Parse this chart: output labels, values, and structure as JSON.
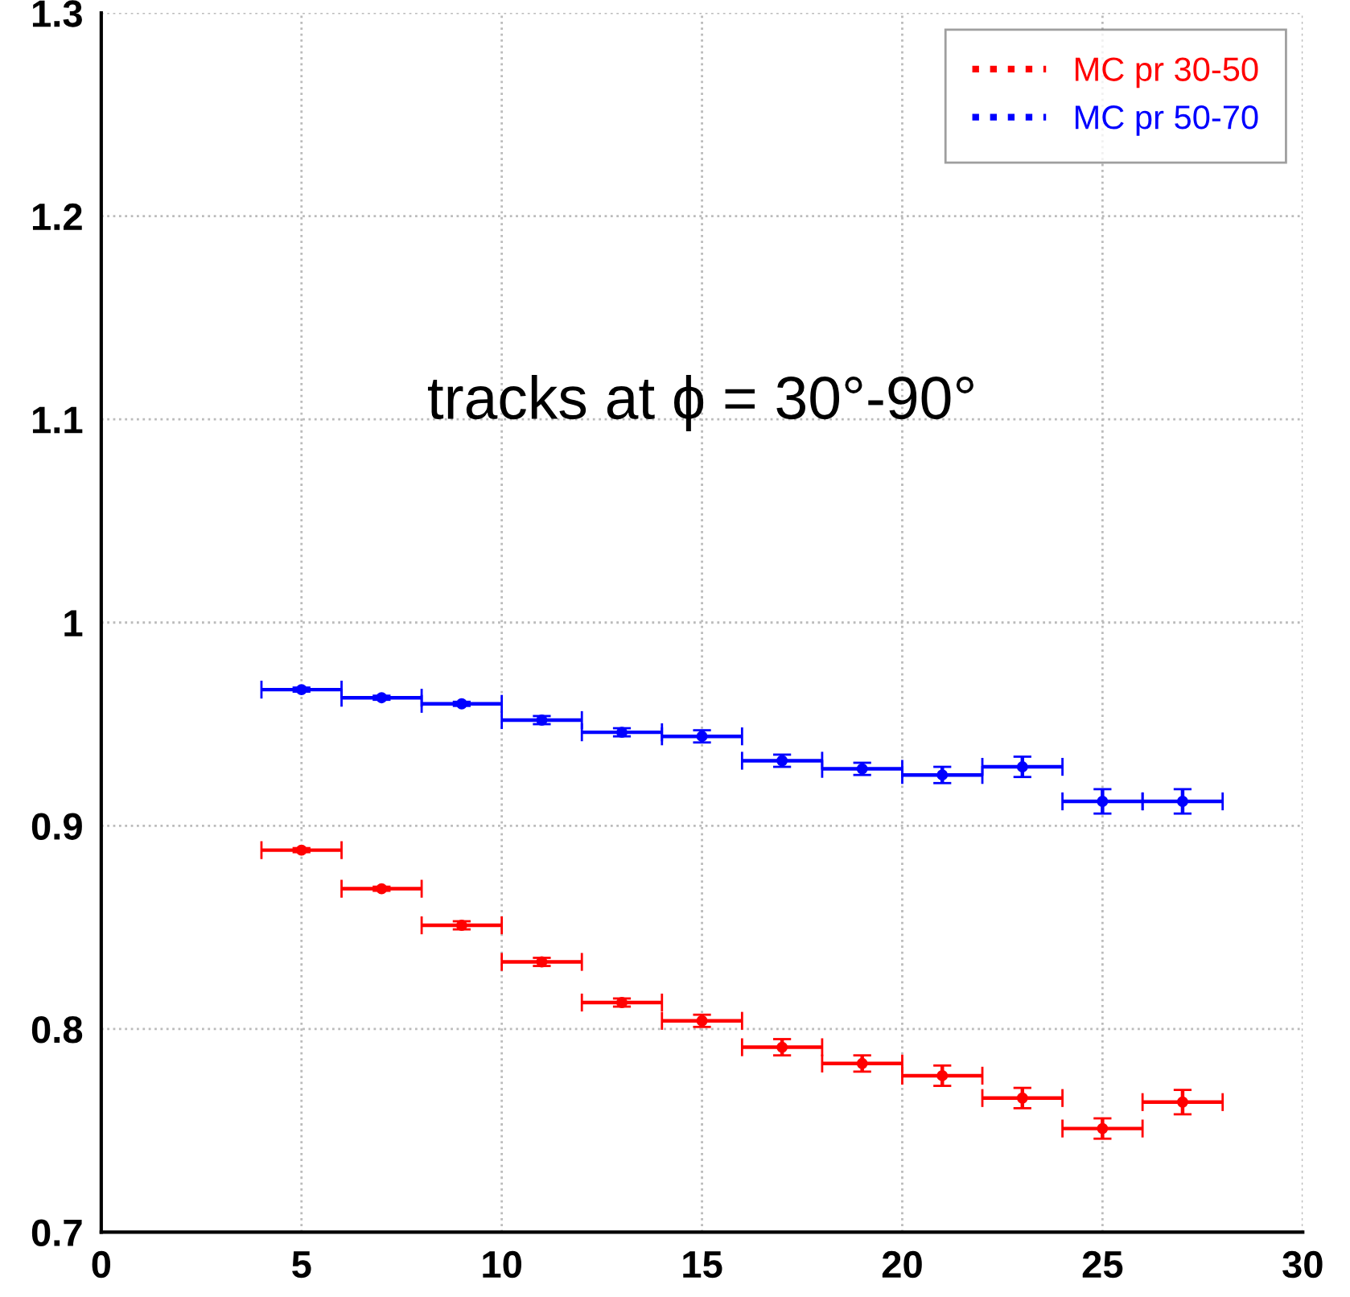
{
  "chart_data": {
    "type": "scatter",
    "x": [
      5,
      7,
      9,
      11,
      13,
      15,
      17,
      19,
      21,
      23,
      25,
      27
    ],
    "series": [
      {
        "name": "MC pr 30-50",
        "color": "#ff0000",
        "values": [
          0.888,
          0.869,
          0.851,
          0.833,
          0.813,
          0.804,
          0.791,
          0.783,
          0.777,
          0.766,
          0.751,
          0.764
        ],
        "errors": [
          0.001,
          0.001,
          0.002,
          0.002,
          0.002,
          0.003,
          0.004,
          0.004,
          0.005,
          0.005,
          0.005,
          0.006
        ],
        "xerrors": [
          1,
          1,
          1,
          1,
          1,
          1,
          1,
          1,
          1,
          1,
          1,
          1
        ]
      },
      {
        "name": "MC pr 50-70",
        "color": "#0000ff",
        "values": [
          0.967,
          0.963,
          0.96,
          0.952,
          0.946,
          0.944,
          0.932,
          0.928,
          0.925,
          0.929,
          0.912,
          0.912
        ],
        "errors": [
          0.001,
          0.001,
          0.001,
          0.002,
          0.002,
          0.003,
          0.003,
          0.003,
          0.004,
          0.005,
          0.006,
          0.006
        ],
        "xerrors": [
          1,
          1,
          1,
          1,
          1,
          1,
          1,
          1,
          1,
          1,
          1,
          1
        ]
      }
    ],
    "xlim": [
      0,
      30
    ],
    "xticks": [
      0,
      5,
      10,
      15,
      20,
      25,
      30
    ],
    "ylim": [
      0.7,
      1.3
    ],
    "yticks": [
      0.7,
      0.8,
      0.9,
      1,
      1.1,
      1.2,
      1.3
    ],
    "grid": true,
    "legend": "top right",
    "marker": "circle",
    "annotations": [
      "tracks at ϕ = 30°-90°"
    ]
  }
}
